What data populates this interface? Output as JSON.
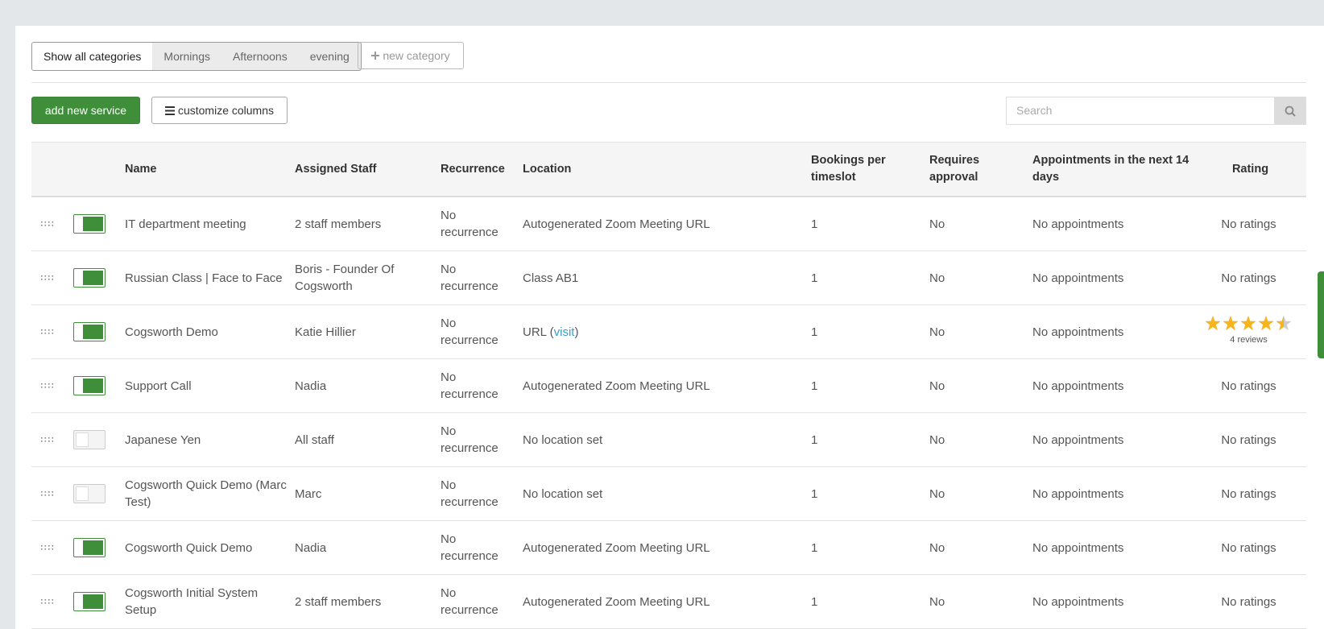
{
  "category_tabs": {
    "items": [
      "Show all categories",
      "Mornings",
      "Afternoons",
      "evening"
    ],
    "active": 0
  },
  "new_category_button": "new category",
  "add_service_button": "add new service",
  "customize_columns_button": "customize columns",
  "search_placeholder": "Search",
  "table": {
    "headers": [
      "Name",
      "Assigned Staff",
      "Recurrence",
      "Location",
      "Bookings per timeslot",
      "Requires approval",
      "Appointments in the next 14 days",
      "Rating"
    ],
    "rows": [
      {
        "enabled": true,
        "name": "IT department meeting",
        "staff": "2 staff members",
        "recurrence": "No recurrence",
        "location": "Autogenerated Zoom Meeting URL",
        "bookings": 1,
        "approval": "No",
        "appointments": "No appointments",
        "rating": "No ratings"
      },
      {
        "enabled": true,
        "name": "Russian Class | Face to Face",
        "staff": "Boris - Founder Of Cogsworth",
        "recurrence": "No recurrence",
        "location": "Class AB1",
        "bookings": 1,
        "approval": "No",
        "appointments": "No appointments",
        "rating": "No ratings"
      },
      {
        "enabled": true,
        "name": "Cogsworth Demo",
        "staff": "Katie Hillier",
        "recurrence": "No recurrence",
        "location": "URL (",
        "location_link": "visit",
        "location_suffix": ")",
        "bookings": 1,
        "approval": "No",
        "appointments": "No appointments",
        "rating_stars": 4.5,
        "rating": "4 reviews"
      },
      {
        "enabled": true,
        "name": "Support Call",
        "staff": "Nadia",
        "recurrence": "No recurrence",
        "location": "Autogenerated Zoom Meeting URL",
        "bookings": 1,
        "approval": "No",
        "appointments": "No appointments",
        "rating": "No ratings"
      },
      {
        "enabled": false,
        "name": "Japanese Yen",
        "staff": "All staff",
        "recurrence": "No recurrence",
        "location": "No location set",
        "bookings": 1,
        "approval": "No",
        "appointments": "No appointments",
        "rating": "No ratings"
      },
      {
        "enabled": false,
        "name": "Cogsworth Quick Demo (Marc Test)",
        "staff": "Marc",
        "recurrence": "No recurrence",
        "location": "No location set",
        "bookings": 1,
        "approval": "No",
        "appointments": "No appointments",
        "rating": "No ratings"
      },
      {
        "enabled": true,
        "name": "Cogsworth Quick Demo",
        "staff": "Nadia",
        "recurrence": "No recurrence",
        "location": "Autogenerated Zoom Meeting URL",
        "bookings": 1,
        "approval": "No",
        "appointments": "No appointments",
        "rating": "No ratings"
      },
      {
        "enabled": true,
        "name": "Cogsworth Initial System Setup",
        "staff": "2 staff members",
        "recurrence": "No recurrence",
        "location": "Autogenerated Zoom Meeting URL",
        "bookings": 1,
        "approval": "No",
        "appointments": "No appointments",
        "rating": "No ratings"
      }
    ]
  }
}
